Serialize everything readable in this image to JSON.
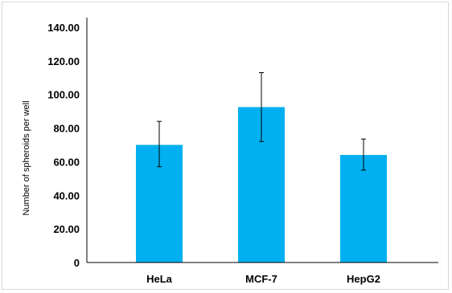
{
  "chart_data": {
    "type": "bar",
    "title": "",
    "xlabel": "",
    "ylabel": "Number of spheroids per well",
    "categories": [
      "HeLa",
      "MCF-7",
      "HepG2"
    ],
    "values": [
      70.0,
      92.5,
      64.0
    ],
    "error_low": [
      57.0,
      72.0,
      55.0
    ],
    "error_high": [
      84.0,
      113.0,
      73.5
    ],
    "ylim": [
      0,
      140
    ],
    "y_ticks": [
      {
        "value": 0,
        "label": "0"
      },
      {
        "value": 20,
        "label": "20.00"
      },
      {
        "value": 40,
        "label": "40.00"
      },
      {
        "value": 60,
        "label": "60.00"
      },
      {
        "value": 80,
        "label": "80.00"
      },
      {
        "value": 100,
        "label": "100.00"
      },
      {
        "value": 120,
        "label": "120.00"
      },
      {
        "value": 140,
        "label": "140.00"
      }
    ],
    "grid": false,
    "legend": "none",
    "colors": {
      "bar": "#00b0f0",
      "axis": "#000000",
      "error_bar": "#000000"
    }
  }
}
